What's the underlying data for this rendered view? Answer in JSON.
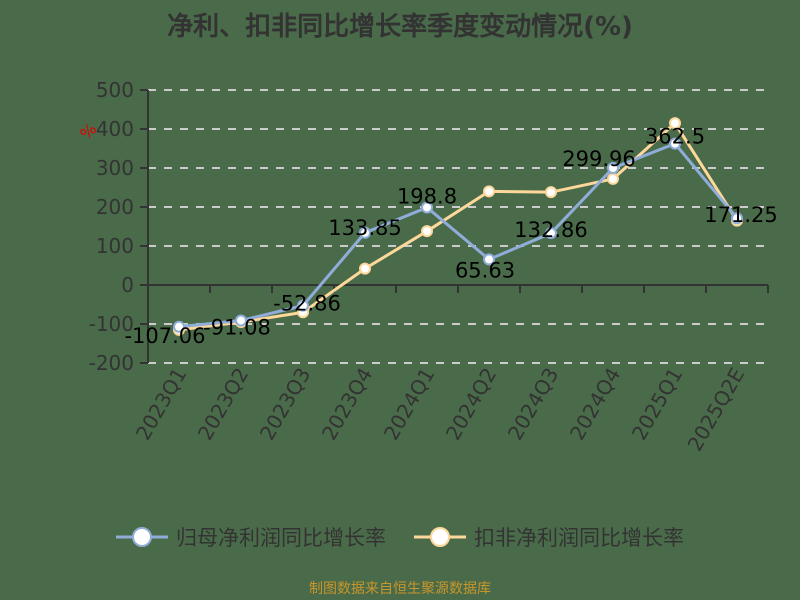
{
  "title": "净利、扣非同比增长率季度变动情况(%)",
  "unit_mark": "%",
  "legend": [
    {
      "label": "归母净利润同比增长率",
      "color": "#8fadd8"
    },
    {
      "label": "扣非净利润同比增长率",
      "color": "#fdd89a"
    }
  ],
  "footer": "制图数据来自恒生聚源数据库",
  "chart_data": {
    "type": "line",
    "title": "净利、扣非同比增长率季度变动情况(%)",
    "xlabel": "",
    "ylabel": "%",
    "ylim": [
      -200,
      500
    ],
    "yticks": [
      500,
      400,
      300,
      200,
      100,
      0,
      -100,
      -200
    ],
    "grid": true,
    "legend_position": "bottom",
    "categories": [
      "2023Q1",
      "2023Q2",
      "2023Q3",
      "2023Q4",
      "2024Q1",
      "2024Q2",
      "2024Q3",
      "2024Q4",
      "2025Q1",
      "2025Q2E"
    ],
    "series": [
      {
        "name": "归母净利润同比增长率",
        "color": "#8fadd8",
        "values": [
          -107.06,
          -91.08,
          -52.86,
          133.85,
          198.8,
          65.63,
          132.86,
          299.96,
          362.5,
          171.25
        ],
        "labels": [
          "-107.06",
          "-91.08",
          "-52.86",
          "133.85",
          "198.8",
          "65.63",
          "132.86",
          "299.96",
          "362.5",
          "171.25"
        ]
      },
      {
        "name": "扣非净利润同比增长率",
        "color": "#fdd89a",
        "values": [
          -115,
          -95,
          -70,
          42,
          138,
          240,
          238,
          272,
          415,
          165
        ]
      }
    ]
  }
}
